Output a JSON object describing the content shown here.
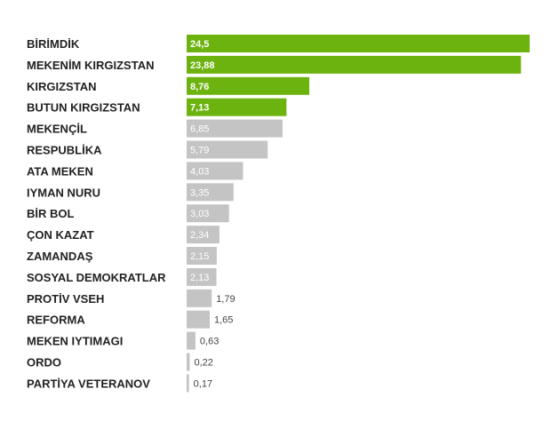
{
  "chart_data": {
    "type": "bar",
    "orientation": "horizontal",
    "categories": [
      "BİRİMDİK",
      "MEKENİM KIRGIZSTAN",
      "KIRGIZSTAN",
      "BUTUN KIRGIZSTAN",
      "MEKENÇİL",
      "RESPUBLİKA",
      "ATA MEKEN",
      "IYMAN NURU",
      "BİR BOL",
      "ÇON KAZAT",
      "ZAMANDAŞ",
      "SOSYAL DEMOKRATLAR",
      "PROTİV VSEH",
      "REFORMA",
      "MEKEN IYTIMAGI",
      "ORDO",
      "PARTİYA VETERANOV"
    ],
    "values": [
      24.5,
      23.88,
      8.76,
      7.13,
      6.85,
      5.79,
      4.03,
      3.35,
      3.03,
      2.34,
      2.15,
      2.13,
      1.79,
      1.65,
      0.63,
      0.22,
      0.17
    ],
    "value_labels": [
      "24,5",
      "23,88",
      "8,76",
      "7,13",
      "6,85",
      "5,79",
      "4,03",
      "3,35",
      "3,03",
      "2,34",
      "2,15",
      "2,13",
      "1,79",
      "1,65",
      "0,63",
      "0,22",
      "0,17"
    ],
    "highlighted_count": 4,
    "colors": {
      "highlight": "#6db30f",
      "default": "#c4c4c4"
    },
    "xlim": [
      0,
      24.5
    ],
    "grid": false,
    "legend": "none"
  }
}
